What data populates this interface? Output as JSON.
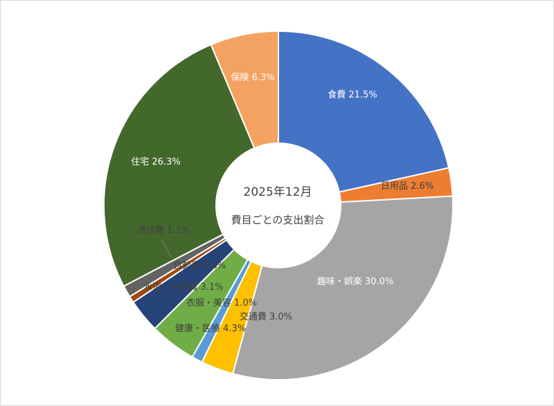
{
  "chart_data": {
    "type": "pie",
    "variant": "doughnut",
    "title": "2025年12月",
    "subtitle": "費目ごとの支出割合",
    "slices": [
      {
        "name": "食費",
        "value": 21.5,
        "label": "食費 21.5%",
        "color": "#4472C4",
        "label_color": "#ffffff"
      },
      {
        "name": "日用品",
        "value": 2.6,
        "label": "日用品 2.6%",
        "color": "#ED7D31",
        "label_color": "#404040"
      },
      {
        "name": "趣味・娯楽",
        "value": 30.0,
        "label": "趣味・娯楽 30.0%",
        "color": "#A5A5A5",
        "label_color": "#ffffff"
      },
      {
        "name": "交通費",
        "value": 3.0,
        "label": "交通費 3.0%",
        "color": "#FFC000",
        "label_color": "#404040"
      },
      {
        "name": "衣服・美容",
        "value": 1.0,
        "label": "衣服・美容 1.0%",
        "color": "#5B9BD5",
        "label_color": "#404040"
      },
      {
        "name": "健康・医療",
        "value": 4.3,
        "label": "健康・医療 4.3%",
        "color": "#70AD47",
        "label_color": "#404040"
      },
      {
        "name": "水道・光熱費",
        "value": 3.1,
        "label": "水道・光熱費 3.1%",
        "color": "#264478",
        "label_color": "#404040"
      },
      {
        "name": "自動車",
        "value": 0.6,
        "label": "自動車 0.6%",
        "color": "#9E480E",
        "label_color": "#404040"
      },
      {
        "name": "通信費",
        "value": 1.1,
        "label": "通信費 1.1%",
        "color": "#636363",
        "label_color": "#404040"
      },
      {
        "name": "住宅",
        "value": 26.3,
        "label": "住宅 26.3%",
        "color": "#43682B",
        "label_color": "#ffffff"
      },
      {
        "name": "保険",
        "value": 6.3,
        "label": "保険 6.3%",
        "color": "#F4A261",
        "label_color": "#ffffff"
      }
    ]
  }
}
